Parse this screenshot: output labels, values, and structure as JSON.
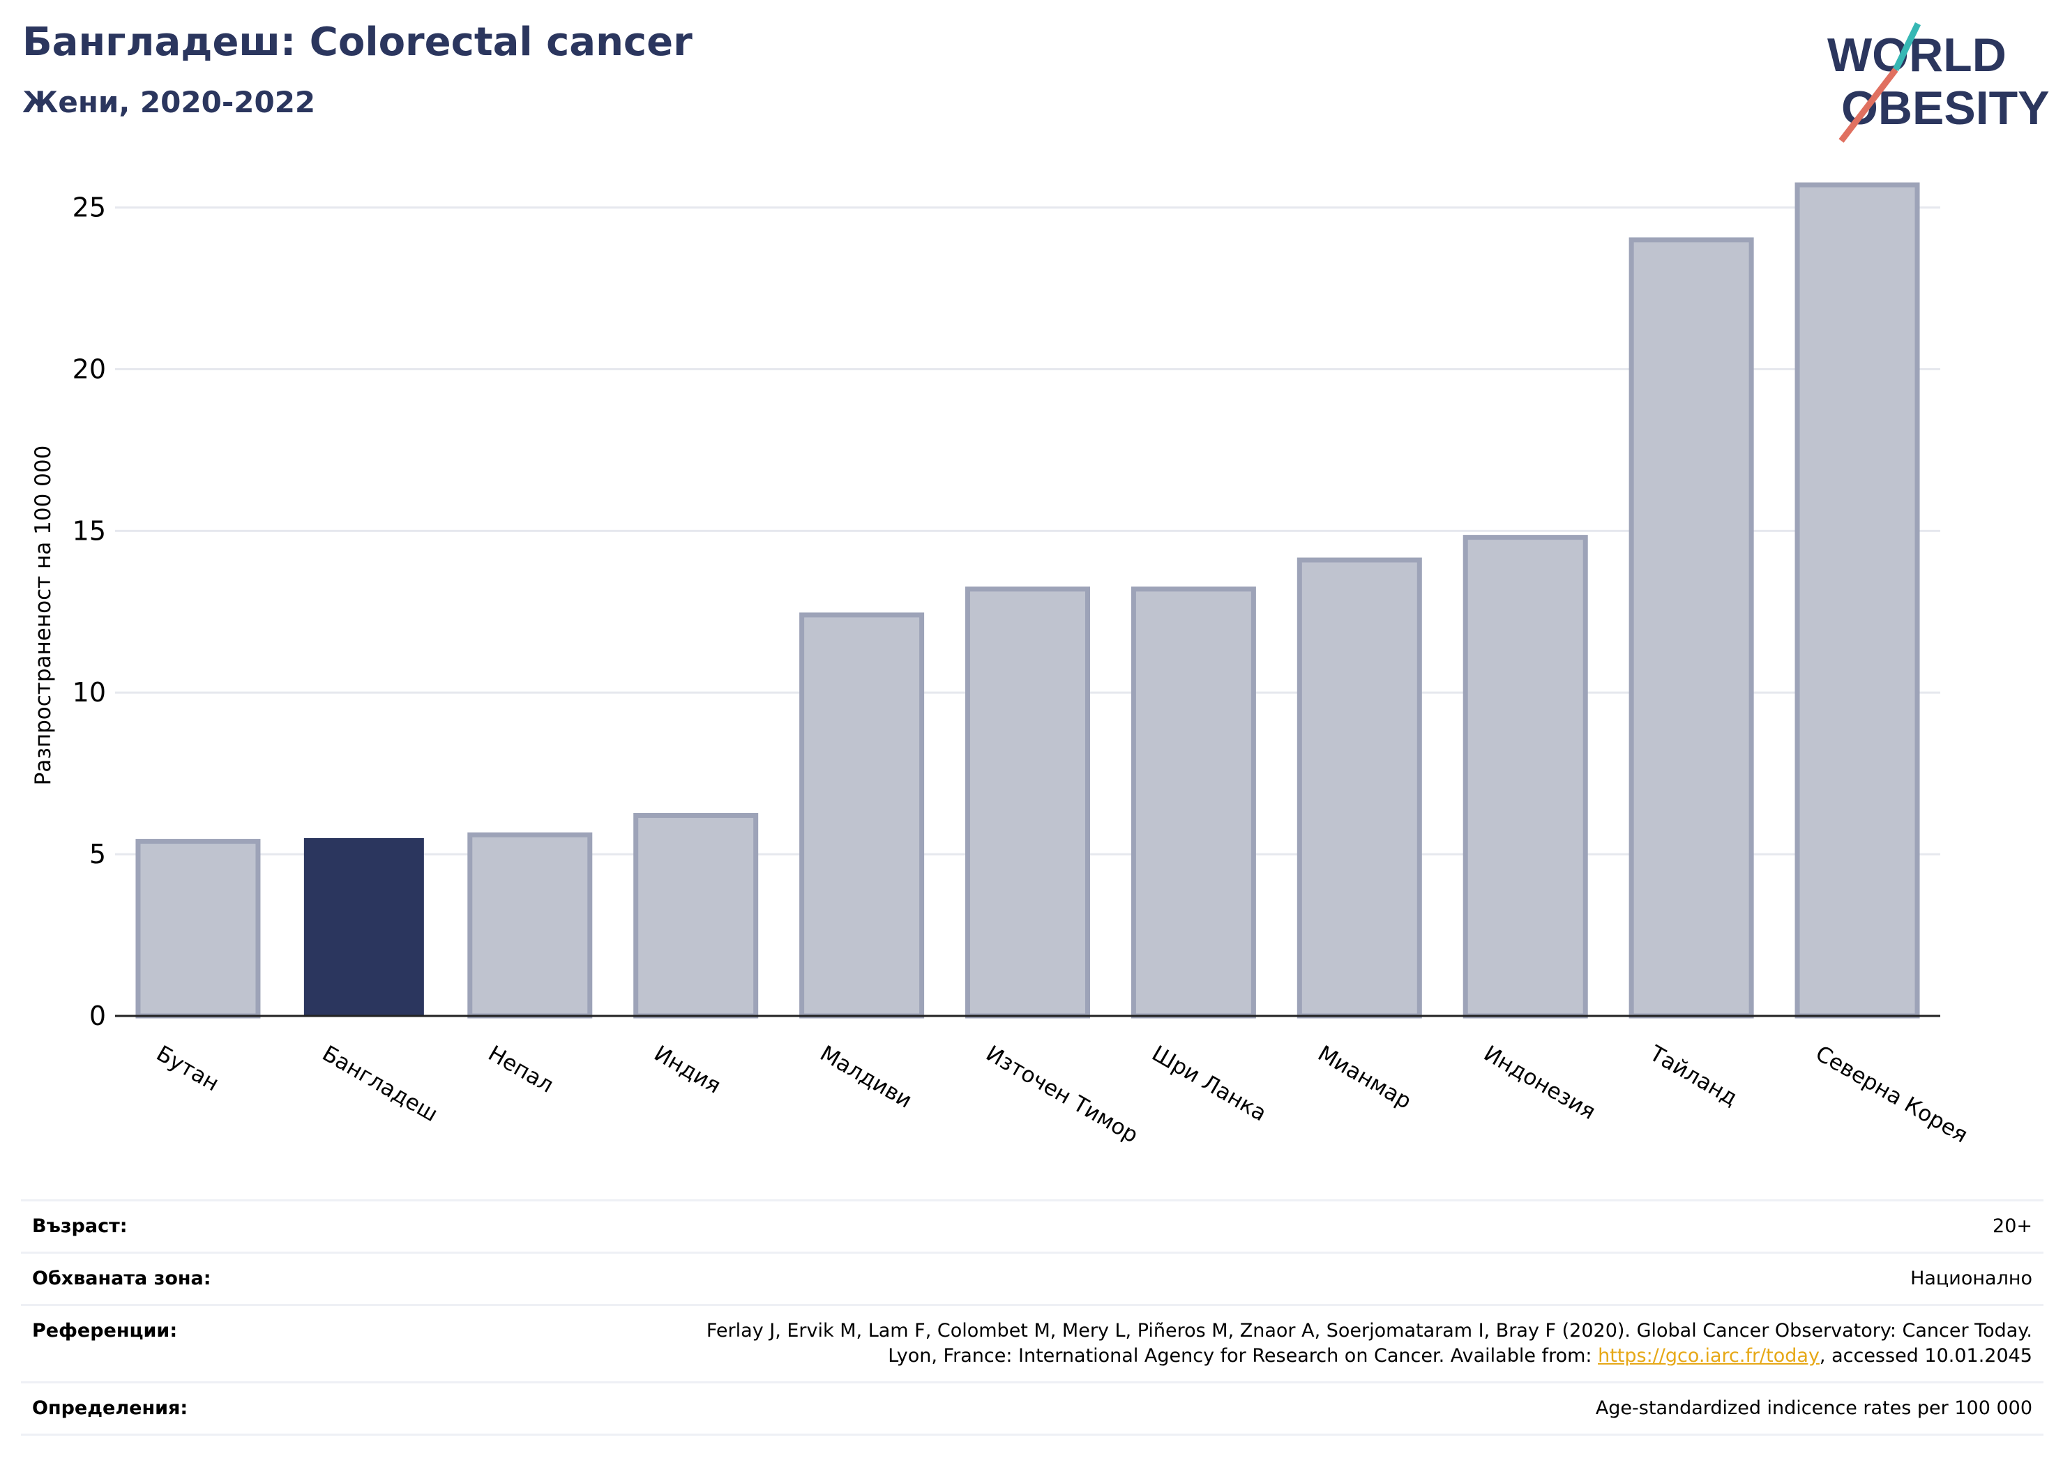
{
  "header": {
    "title": "Бангладеш: Colorectal cancer",
    "subtitle": "Жени, 2020-2022"
  },
  "logo": {
    "line1": "WORLD",
    "line2": "OBESITY"
  },
  "colors": {
    "highlight": "#2b365e",
    "bar": "#bfc3cf",
    "bar_edge": "#9da3b8",
    "grid": "#e6e8ee",
    "title": "#2b365e",
    "link": "#e6a817"
  },
  "chart_data": {
    "type": "bar",
    "categories": [
      "Бутан",
      "Бангладеш",
      "Непал",
      "Индия",
      "Малдиви",
      "Източен Тимор",
      "Шри Ланка",
      "Мианмар",
      "Индонезия",
      "Тайланд",
      "Северна Корея"
    ],
    "values": [
      5.4,
      5.5,
      5.6,
      6.2,
      12.4,
      13.2,
      13.2,
      14.1,
      14.8,
      24.0,
      25.7
    ],
    "highlight": "Бангладеш",
    "ylabel": "Разпространеност  на 100 000",
    "yticks": [
      0,
      5,
      10,
      15,
      20,
      25
    ],
    "ylim": [
      0,
      26.5
    ],
    "grid": true
  },
  "meta": {
    "age_label": "Възраст:",
    "age_value": "20+",
    "coverage_label": "Обхваната зона:",
    "coverage_value": "Национално",
    "refs_label": "Референции:",
    "refs_line1": "Ferlay J, Ervik M, Lam F, Colombet M, Mery L, Piñeros M, Znaor A, Soerjomataram I, Bray F (2020). Global Cancer Observatory: Cancer Today.",
    "refs_line2_pre": "Lyon, France: International Agency for Research on Cancer. Available from: ",
    "refs_link": "https://gco.iarc.fr/today",
    "refs_line2_post": ", accessed 10.01.2045",
    "defs_label": "Определения:",
    "defs_value": "Age-standardized indicence rates per 100 000"
  }
}
